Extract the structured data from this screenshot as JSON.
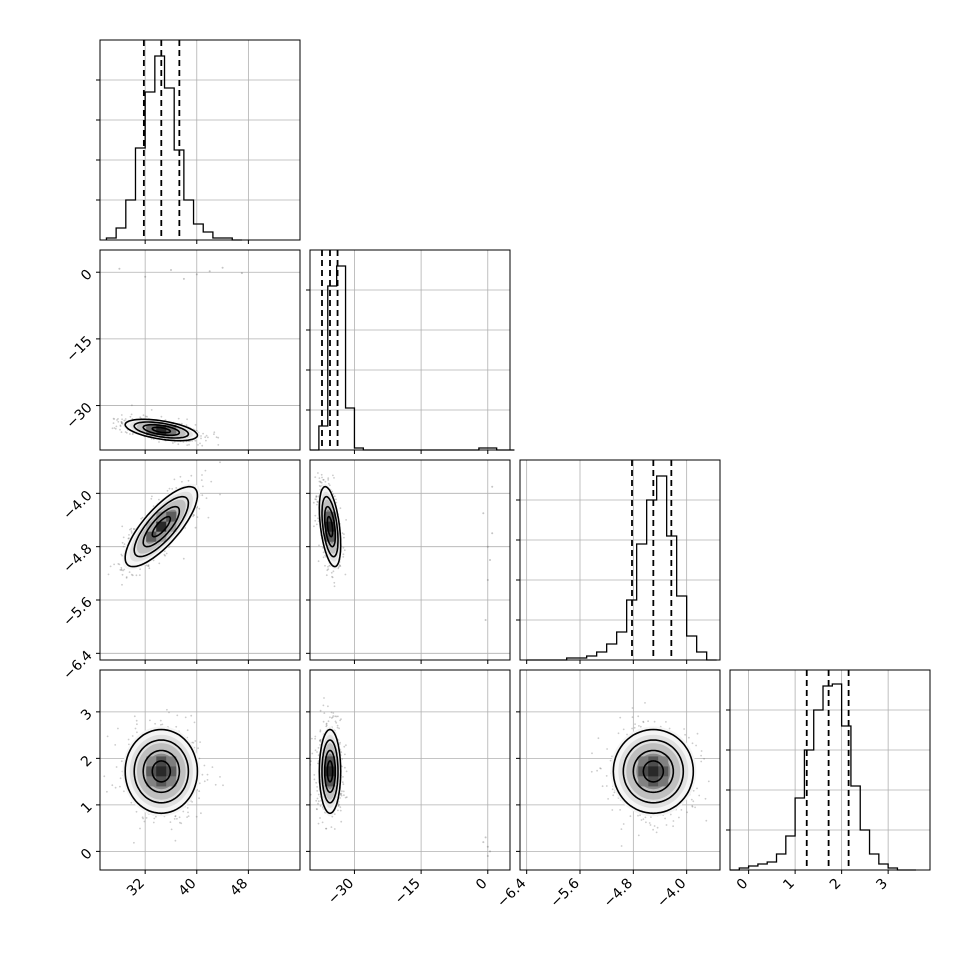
{
  "chart_data": {
    "type": "corner",
    "grid": true,
    "parameters": [
      {
        "range": [
          25,
          56
        ],
        "ticks": [
          32,
          40,
          48
        ],
        "tick_labels": [
          "32",
          "40",
          "48"
        ],
        "quantiles": [
          31.8,
          34.5,
          37.3
        ],
        "histogram": {
          "bins": [
            26.0,
            27.5,
            29.0,
            30.5,
            32.0,
            33.5,
            35.0,
            36.5,
            38.0,
            39.5,
            41.0,
            42.5,
            44.0,
            45.5
          ],
          "counts": [
            0.01,
            0.06,
            0.2,
            0.46,
            0.74,
            0.92,
            0.76,
            0.45,
            0.2,
            0.08,
            0.04,
            0.01,
            0.01,
            0.0
          ]
        }
      },
      {
        "range": [
          -40,
          5
        ],
        "ticks": [
          -30,
          -15,
          0
        ],
        "tick_labels": [
          "−30",
          "−15",
          "0"
        ],
        "quantiles": [
          -37.3,
          -35.5,
          -33.8
        ],
        "histogram": {
          "bins": [
            -40,
            -38,
            -36,
            -34,
            -32,
            -30,
            -28,
            -26,
            -24,
            -22,
            -20,
            -18,
            -16,
            -14,
            -12,
            -10,
            -8,
            -6,
            -4,
            -2,
            0,
            2,
            4
          ],
          "counts": [
            0.0,
            0.12,
            0.82,
            0.92,
            0.21,
            0.01,
            0.0,
            0.0,
            0.0,
            0.0,
            0.0,
            0.0,
            0.0,
            0.0,
            0.0,
            0.0,
            0.0,
            0.0,
            0.0,
            0.01,
            0.01,
            0.0,
            0.0
          ]
        }
      },
      {
        "range": [
          -6.5,
          -3.5
        ],
        "ticks": [
          -6.4,
          -5.6,
          -4.8,
          -4.0
        ],
        "tick_labels": [
          "−6.4",
          "−5.6",
          "−4.8",
          "−4.0"
        ],
        "quantiles": [
          -4.82,
          -4.5,
          -4.23
        ],
        "histogram": {
          "bins": [
            -6.4,
            -6.25,
            -6.1,
            -5.95,
            -5.8,
            -5.65,
            -5.5,
            -5.35,
            -5.2,
            -5.05,
            -4.9,
            -4.75,
            -4.6,
            -4.45,
            -4.3,
            -4.15,
            -4.0,
            -3.85,
            -3.7
          ],
          "counts": [
            0.0,
            0.0,
            0.0,
            0.0,
            0.01,
            0.01,
            0.02,
            0.04,
            0.08,
            0.14,
            0.3,
            0.58,
            0.8,
            0.92,
            0.62,
            0.32,
            0.12,
            0.04,
            0.0
          ]
        }
      },
      {
        "range": [
          -0.4,
          3.9
        ],
        "ticks": [
          0,
          1,
          2,
          3
        ],
        "tick_labels": [
          "0",
          "1",
          "2",
          "3"
        ],
        "quantiles": [
          1.25,
          1.72,
          2.15
        ],
        "histogram": {
          "bins": [
            -0.4,
            -0.2,
            0.0,
            0.2,
            0.4,
            0.6,
            0.8,
            1.0,
            1.2,
            1.4,
            1.6,
            1.8,
            2.0,
            2.2,
            2.4,
            2.6,
            2.8,
            3.0,
            3.2,
            3.4
          ],
          "counts": [
            0.0,
            0.01,
            0.02,
            0.03,
            0.04,
            0.08,
            0.17,
            0.36,
            0.6,
            0.8,
            0.92,
            0.93,
            0.72,
            0.42,
            0.2,
            0.08,
            0.03,
            0.01,
            0.0,
            0.0
          ]
        }
      }
    ],
    "contours": [
      {
        "x": 0,
        "y": 1,
        "center": [
          34.5,
          -35.5
        ],
        "sd": [
          2.8,
          1.2
        ],
        "rho": -0.5,
        "outliers": [
          [
            32,
            -1
          ],
          [
            36,
            0.5
          ],
          [
            40,
            -0.5
          ],
          [
            44,
            1
          ],
          [
            47,
            -0.2
          ],
          [
            28,
            0.8
          ],
          [
            38,
            -1.5
          ],
          [
            42,
            0.2
          ]
        ]
      },
      {
        "x": 0,
        "y": 2,
        "center": [
          34.5,
          -4.5
        ],
        "sd": [
          2.8,
          0.3
        ],
        "rho": 0.78,
        "outliers": []
      },
      {
        "x": 1,
        "y": 2,
        "center": [
          -35.5,
          -4.5
        ],
        "sd": [
          1.2,
          0.3
        ],
        "rho": -0.45,
        "outliers": [
          [
            -1,
            -4.3
          ],
          [
            0,
            -4.8
          ],
          [
            1,
            -4.6
          ],
          [
            0,
            -5.3
          ],
          [
            -0.5,
            -5.9
          ],
          [
            1,
            -3.9
          ],
          [
            0.5,
            -5.0
          ]
        ]
      },
      {
        "x": 0,
        "y": 3,
        "center": [
          34.5,
          1.72
        ],
        "sd": [
          2.8,
          0.45
        ],
        "rho": 0.0,
        "outliers": []
      },
      {
        "x": 1,
        "y": 3,
        "center": [
          -35.5,
          1.72
        ],
        "sd": [
          1.2,
          0.45
        ],
        "rho": 0.0,
        "outliers": [
          [
            -0.5,
            0.3
          ],
          [
            0,
            0.1
          ],
          [
            0.5,
            0.0
          ],
          [
            0,
            -0.1
          ],
          [
            -1,
            0.2
          ]
        ]
      },
      {
        "x": 2,
        "y": 3,
        "center": [
          -4.5,
          1.72
        ],
        "sd": [
          0.3,
          0.45
        ],
        "rho": 0.0,
        "outliers": []
      }
    ]
  }
}
